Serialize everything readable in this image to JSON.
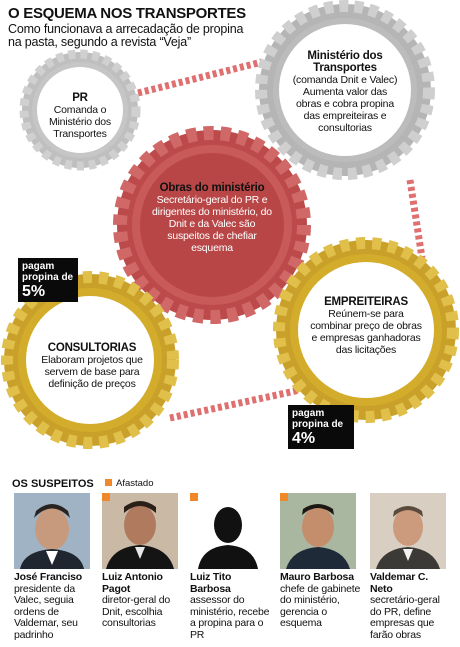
{
  "header": {
    "title": "O ESQUEMA NOS TRANSPORTES",
    "subtitle": "Como funcionava a arrecadação de propina na pasta, segundo a revista “Veja”"
  },
  "gears": {
    "pr": {
      "title": "PR",
      "desc": "Comanda o Ministério dos Transportes"
    },
    "ministerio": {
      "title": "Ministério dos Transportes",
      "desc": "(comanda Dnit e Valec) Aumenta valor das obras e cobra propina das empreiteiras e consultorias"
    },
    "obras": {
      "title": "Obras do ministério",
      "desc": "Secretário-geral do PR e dirigentes do ministério, do Dnit e da Valec são suspeitos de chefiar esquema"
    },
    "empreiteiras": {
      "title": "EMPREITEIRAS",
      "desc": "Reúnem-se para combinar preço de obras e empresas ganhadoras das licitações"
    },
    "consultorias": {
      "title": "CONSULTORIAS",
      "desc": "Elaboram projetos que servem de base para definição de preços"
    }
  },
  "badges": {
    "consultorias": {
      "label": "pagam propina de",
      "value": "5%"
    },
    "empreiteiras": {
      "label": "pagam propina de",
      "value": "4%"
    }
  },
  "suspects": {
    "title": "OS SUSPEITOS",
    "legend": "Afastado",
    "colors": {
      "afastado": "#f0882a"
    },
    "people": [
      {
        "name": "José Franciso",
        "desc": "presidente da Valec, seguia ordens de Valdemar, seu padrinho",
        "afastado": false
      },
      {
        "name": "Luiz Antonio Pagot",
        "desc": "diretor-geral do Dnit, escolhia consultorias",
        "afastado": true
      },
      {
        "name": "Luiz Tito Barbosa",
        "desc": "assessor do ministério, recebe a propina para o PR",
        "afastado": true
      },
      {
        "name": "Mauro Barbosa",
        "desc": "chefe de gabinete do ministério, gerencia o esquema",
        "afastado": true
      },
      {
        "name": "Valdemar C. Neto",
        "desc": "secretário-geral do PR, define empresas que farão obras",
        "afastado": false
      }
    ]
  },
  "colors": {
    "gray_gear": "#c8c8c8",
    "red_gear": "#c05050",
    "gold_gear": "#d4ac2c",
    "chain": "#e07070"
  }
}
